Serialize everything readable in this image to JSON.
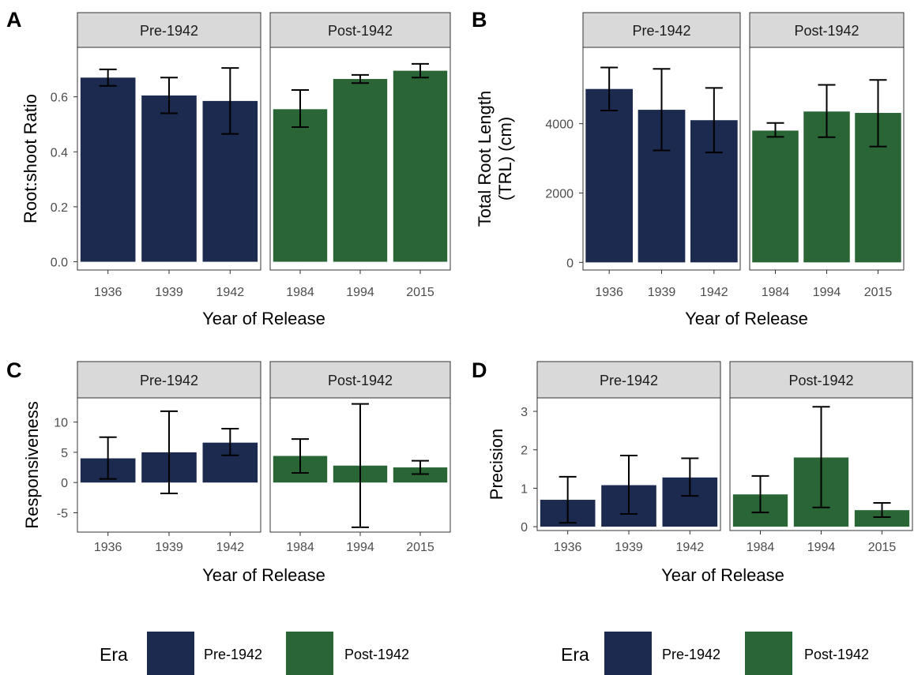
{
  "colors": {
    "pre": "#1b2a4e",
    "post": "#2a6536",
    "strip_fill": "#d9d9d9",
    "axis_text": "#4d4d4d",
    "frame": "#333333"
  },
  "legend_entries": {
    "title": "Era",
    "items": [
      {
        "label": "Pre-1942",
        "color": "#1b2a4e"
      },
      {
        "label": "Post-1942",
        "color": "#2a6536"
      }
    ]
  },
  "chart_data": [
    {
      "panel": "A",
      "type": "bar",
      "ylabel": [
        "Root:shoot Ratio"
      ],
      "xlabel": "Year of Release",
      "ylim": [
        -0.03,
        0.78
      ],
      "yticks": [
        0.0,
        0.2,
        0.4,
        0.6
      ],
      "ytick_labels": [
        "0.0",
        "0.2",
        "0.4",
        "0.6"
      ],
      "facets": [
        {
          "label": "Pre-1942",
          "categories": [
            "1936",
            "1939",
            "1942"
          ],
          "values": [
            0.67,
            0.605,
            0.585
          ],
          "err_low": [
            0.64,
            0.54,
            0.465
          ],
          "err_high": [
            0.7,
            0.67,
            0.705
          ]
        },
        {
          "label": "Post-1942",
          "categories": [
            "1984",
            "1994",
            "2015"
          ],
          "values": [
            0.555,
            0.665,
            0.695
          ],
          "err_low": [
            0.49,
            0.65,
            0.67
          ],
          "err_high": [
            0.625,
            0.68,
            0.72
          ]
        }
      ]
    },
    {
      "panel": "B",
      "type": "bar",
      "ylabel": [
        "Total Root Length",
        "(TRL) (cm)"
      ],
      "xlabel": "Year of Release",
      "ylim": [
        -220,
        6200
      ],
      "yticks": [
        0,
        2000,
        4000
      ],
      "ytick_labels": [
        "0",
        "2000",
        "4000"
      ],
      "facets": [
        {
          "label": "Pre-1942",
          "categories": [
            "1936",
            "1939",
            "1942"
          ],
          "values": [
            5000,
            4400,
            4100
          ],
          "err_low": [
            4380,
            3230,
            3170
          ],
          "err_high": [
            5620,
            5580,
            5030
          ]
        },
        {
          "label": "Post-1942",
          "categories": [
            "1984",
            "1994",
            "2015"
          ],
          "values": [
            3800,
            4350,
            4310
          ],
          "err_low": [
            3620,
            3610,
            3340
          ],
          "err_high": [
            4020,
            5120,
            5260
          ]
        }
      ]
    },
    {
      "panel": "C",
      "type": "bar",
      "ylabel": [
        "Responsiveness"
      ],
      "xlabel": "Year of Release",
      "ylim": [
        -8.2,
        14.0
      ],
      "yticks": [
        -5,
        0,
        5,
        10
      ],
      "ytick_labels": [
        "-5",
        "0",
        "5",
        "10"
      ],
      "facets": [
        {
          "label": "Pre-1942",
          "categories": [
            "1936",
            "1939",
            "1942"
          ],
          "values": [
            4.0,
            5.0,
            6.6
          ],
          "err_low": [
            0.6,
            -1.8,
            4.5
          ],
          "err_high": [
            7.5,
            11.8,
            8.9
          ]
        },
        {
          "label": "Post-1942",
          "categories": [
            "1984",
            "1994",
            "2015"
          ],
          "values": [
            4.4,
            2.8,
            2.5
          ],
          "err_low": [
            1.6,
            -7.4,
            1.4
          ],
          "err_high": [
            7.2,
            13.0,
            3.6
          ]
        }
      ]
    },
    {
      "panel": "D",
      "type": "bar",
      "ylabel": [
        "Precision"
      ],
      "xlabel": "Year of Release",
      "ylim": [
        -0.1,
        3.35
      ],
      "yticks": [
        0,
        1,
        2,
        3
      ],
      "ytick_labels": [
        "0",
        "1",
        "2",
        "3"
      ],
      "facets": [
        {
          "label": "Pre-1942",
          "categories": [
            "1936",
            "1939",
            "1942"
          ],
          "values": [
            0.7,
            1.08,
            1.28
          ],
          "err_low": [
            0.1,
            0.33,
            0.8
          ],
          "err_high": [
            1.3,
            1.85,
            1.78
          ]
        },
        {
          "label": "Post-1942",
          "categories": [
            "1984",
            "1994",
            "2015"
          ],
          "values": [
            0.84,
            1.8,
            0.43
          ],
          "err_low": [
            0.37,
            0.5,
            0.25
          ],
          "err_high": [
            1.32,
            3.12,
            0.62
          ]
        }
      ]
    }
  ]
}
